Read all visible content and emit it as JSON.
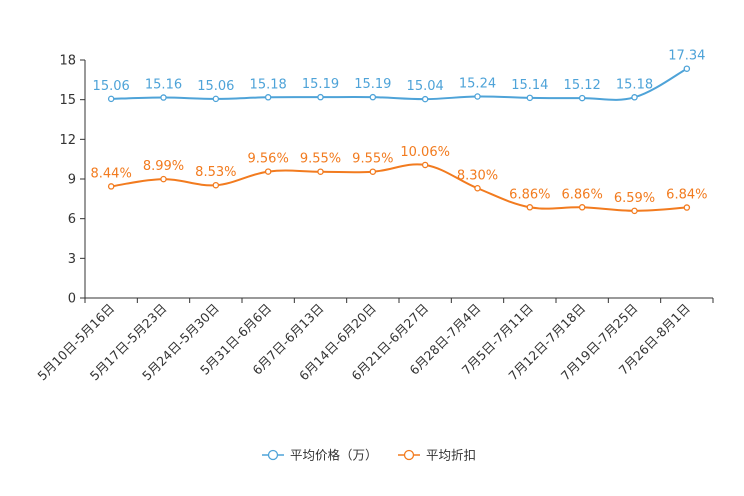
{
  "chart_data": {
    "type": "line",
    "title": "",
    "xlabel": "",
    "ylabel": "",
    "ylim": [
      0,
      18
    ],
    "yticks": [
      0,
      3,
      6,
      9,
      12,
      15,
      18
    ],
    "grid": false,
    "legend_position": "bottom-center",
    "categories": [
      "5月10日-5月16日",
      "5月17日-5月23日",
      "5月24日-5月30日",
      "5月31日-6月6日",
      "6月7日-6月13日",
      "6月14日-6月20日",
      "6月21日-6月27日",
      "6月28日-7月4日",
      "7月5日-7月11日",
      "7月12日-7月18日",
      "7月19日-7月25日",
      "7月26日-8月1日"
    ],
    "series": [
      {
        "name": "平均价格（万）",
        "color": "#4ea3d8",
        "values": [
          15.06,
          15.16,
          15.06,
          15.18,
          15.19,
          15.19,
          15.04,
          15.24,
          15.14,
          15.12,
          15.18,
          17.34
        ],
        "labels": [
          "15.06",
          "15.16",
          "15.06",
          "15.18",
          "15.19",
          "15.19",
          "15.04",
          "15.24",
          "15.14",
          "15.12",
          "15.18",
          "17.34"
        ]
      },
      {
        "name": "平均折扣",
        "color": "#f27b1f",
        "values": [
          8.44,
          8.99,
          8.53,
          9.56,
          9.55,
          9.55,
          10.06,
          8.3,
          6.86,
          6.86,
          6.59,
          6.84
        ],
        "labels": [
          "8.44%",
          "8.99%",
          "8.53%",
          "9.56%",
          "9.55%",
          "9.55%",
          "10.06%",
          "8.30%",
          "6.86%",
          "6.86%",
          "6.59%",
          "6.84%"
        ]
      }
    ]
  }
}
